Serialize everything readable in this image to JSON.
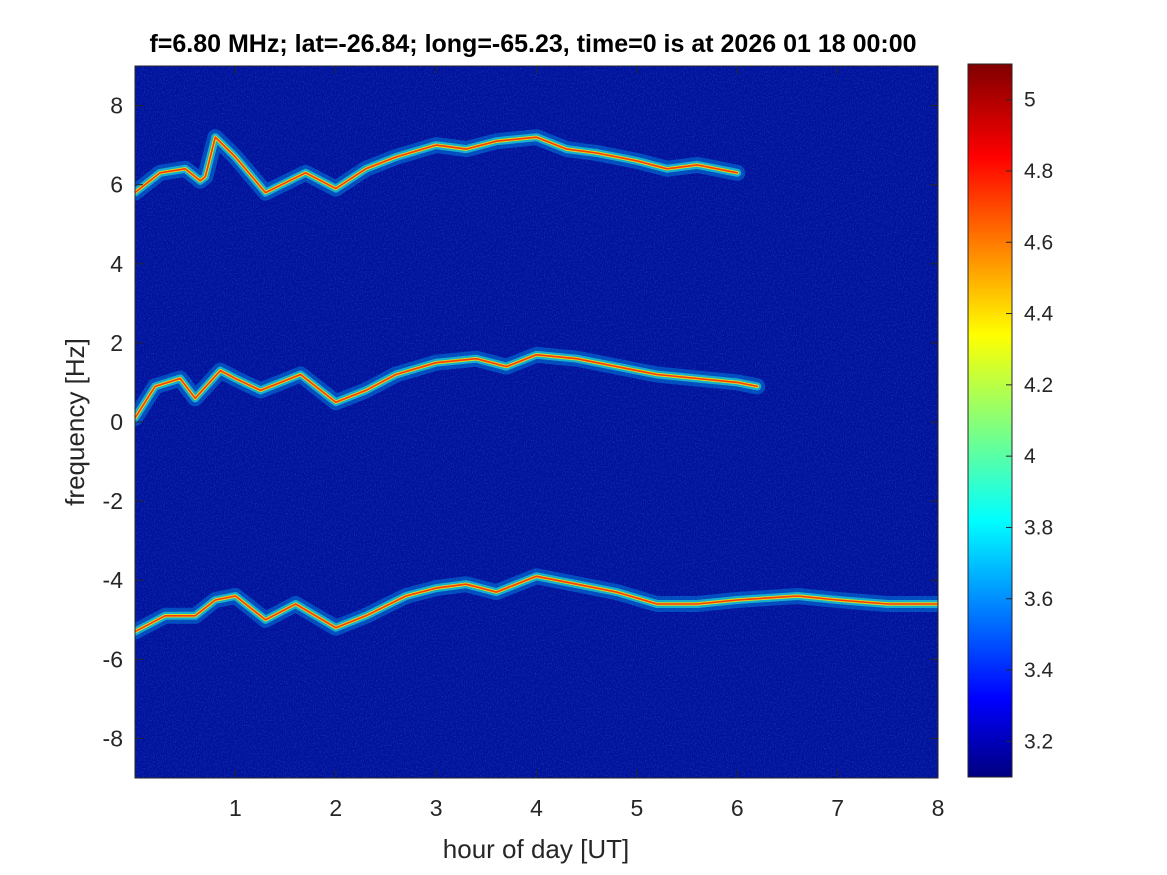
{
  "chart_data": {
    "type": "heatmap",
    "title": "f=6.80 MHz;  lat=-26.84; long=-65.23, time=0 is at 2026 01 18 00:00",
    "xlabel": "hour of day [UT]",
    "ylabel": "frequency [Hz]",
    "xlim": [
      0,
      8
    ],
    "ylim": [
      -9,
      9
    ],
    "xticks": [
      "1",
      "2",
      "3",
      "4",
      "5",
      "6",
      "7",
      "8"
    ],
    "yticks": [
      "-8",
      "-6",
      "-4",
      "-2",
      "0",
      "2",
      "4",
      "6",
      "8"
    ],
    "colormap": "jet",
    "clim": [
      3.1,
      5.1
    ],
    "colorbar_ticks": [
      "3.2",
      "3.4",
      "3.6",
      "3.8",
      "4",
      "4.2",
      "4.4",
      "4.6",
      "4.8",
      "5"
    ],
    "background_value": 3.2,
    "series": [
      {
        "x": [
          0,
          0.25,
          0.5,
          0.65,
          0.7,
          0.8,
          1.0,
          1.3,
          1.7,
          2.0,
          2.3,
          2.6,
          3.0,
          3.3,
          3.6,
          4.0,
          4.3,
          4.6,
          5.0,
          5.3,
          5.6,
          6.0
        ],
        "y": [
          5.8,
          6.3,
          6.4,
          6.1,
          6.2,
          7.2,
          6.7,
          5.8,
          6.3,
          5.9,
          6.4,
          6.7,
          7.0,
          6.9,
          7.1,
          7.2,
          6.9,
          6.8,
          6.6,
          6.4,
          6.5,
          6.3
        ]
      },
      {
        "x": [
          0,
          0.2,
          0.45,
          0.6,
          0.85,
          1.0,
          1.25,
          1.65,
          2.0,
          2.3,
          2.6,
          3.0,
          3.4,
          3.7,
          4.0,
          4.4,
          4.8,
          5.2,
          5.6,
          6.0,
          6.2
        ],
        "y": [
          0.1,
          0.9,
          1.1,
          0.6,
          1.3,
          1.1,
          0.8,
          1.2,
          0.5,
          0.8,
          1.2,
          1.5,
          1.6,
          1.4,
          1.7,
          1.6,
          1.4,
          1.2,
          1.1,
          1.0,
          0.9
        ]
      },
      {
        "x": [
          0,
          0.3,
          0.6,
          0.8,
          1.0,
          1.3,
          1.6,
          2.0,
          2.3,
          2.7,
          3.0,
          3.3,
          3.6,
          4.0,
          4.4,
          4.8,
          5.2,
          5.6,
          6.0,
          6.6,
          7.0,
          7.5,
          8.0
        ],
        "y": [
          -5.3,
          -4.9,
          -4.9,
          -4.5,
          -4.4,
          -5.0,
          -4.6,
          -5.2,
          -4.9,
          -4.4,
          -4.2,
          -4.1,
          -4.3,
          -3.9,
          -4.1,
          -4.3,
          -4.6,
          -4.6,
          -4.5,
          -4.4,
          -4.5,
          -4.6,
          -4.6
        ]
      }
    ]
  }
}
